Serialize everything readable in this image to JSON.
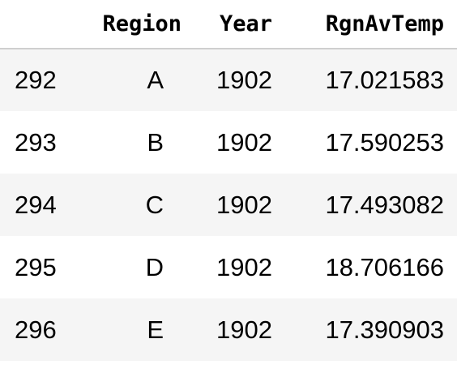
{
  "table": {
    "columns": {
      "index": "",
      "region": "Region",
      "year": "Year",
      "temp": "RgnAvTemp"
    },
    "rows": [
      {
        "index": "292",
        "region": "A",
        "year": "1902",
        "temp": "17.021583"
      },
      {
        "index": "293",
        "region": "B",
        "year": "1902",
        "temp": "17.590253"
      },
      {
        "index": "294",
        "region": "C",
        "year": "1902",
        "temp": "17.493082"
      },
      {
        "index": "295",
        "region": "D",
        "year": "1902",
        "temp": "18.706166"
      },
      {
        "index": "296",
        "region": "E",
        "year": "1902",
        "temp": "17.390903"
      }
    ]
  }
}
